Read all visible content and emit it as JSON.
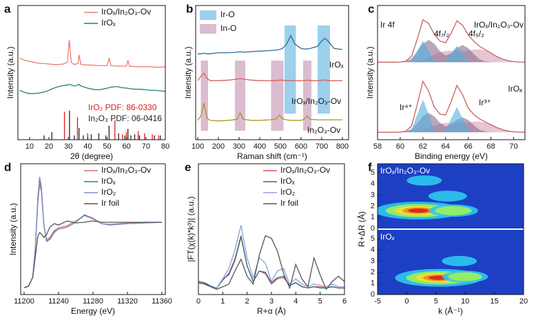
{
  "chart_data": [
    {
      "type": "line",
      "panel": "a",
      "xlabel": "2θ (degree)",
      "ylabel": "Intensity (a.u.)",
      "xlim": [
        4,
        80
      ],
      "xticks": [
        10,
        20,
        30,
        40,
        50,
        60,
        70,
        80
      ],
      "ylim": [
        0,
        12.5
      ],
      "legend": "upper right",
      "x": [
        5,
        7.5,
        10,
        12.5,
        15,
        17.5,
        20,
        22.5,
        25,
        27.5,
        29.5,
        30.5,
        31.5,
        33,
        35,
        35.5,
        36.5,
        40,
        42.5,
        45,
        47.5,
        50,
        51,
        52,
        55,
        57.5,
        60,
        60.7,
        61.5,
        65,
        67.5,
        70,
        72.5,
        75,
        77.5,
        80
      ],
      "series": [
        {
          "name": "IrOₓ/In₂O₃-Ov",
          "color": "#f07a70",
          "values": [
            7.6,
            7.4,
            7.3,
            7.2,
            7.1,
            7.1,
            7.05,
            7.0,
            7.0,
            7.05,
            7.2,
            9.3,
            7.2,
            7.0,
            7.1,
            7.9,
            7.0,
            6.95,
            6.95,
            6.9,
            6.9,
            6.9,
            7.6,
            6.9,
            6.85,
            6.85,
            6.85,
            7.4,
            6.85,
            6.8,
            6.8,
            6.8,
            6.8,
            6.75,
            6.75,
            6.8
          ]
        },
        {
          "name": "IrOₓ",
          "color": "#1e7f80",
          "values": [
            4.6,
            4.4,
            4.3,
            4.3,
            4.35,
            4.45,
            4.6,
            4.8,
            4.95,
            5.05,
            5.1,
            5.15,
            5.1,
            5.0,
            5.1,
            5.15,
            5.0,
            4.8,
            4.7,
            4.65,
            4.7,
            4.8,
            4.85,
            4.9,
            4.95,
            4.85,
            4.8,
            4.8,
            4.75,
            4.7,
            4.7,
            4.65,
            4.6,
            4.6,
            4.55,
            4.5
          ]
        }
      ],
      "references": [
        {
          "name": "IrO₂ PDF: 86-0330",
          "color": "#e01818",
          "x": [
            28,
            34.7,
            40,
            54,
            57.9,
            59.9,
            66,
            69.3,
            73.3,
            76.5
          ],
          "values": [
            2.6,
            2.1,
            0.6,
            1.8,
            0.5,
            0.7,
            0.8,
            0.6,
            0.5,
            0.4
          ]
        },
        {
          "name": "In₂O₃ PDF: 06-0416",
          "color": "#222222",
          "x": [
            17.5,
            21.5,
            30.6,
            33.1,
            35.5,
            37.7,
            41.8,
            45.7,
            49.3,
            51,
            55.9,
            59.1,
            60.7,
            62.2,
            64.2,
            66.7,
            74.4,
            77.4
          ],
          "values": [
            0.4,
            0.7,
            2.7,
            0.4,
            1.1,
            0.4,
            0.5,
            0.6,
            0.4,
            1.3,
            0.6,
            0.4,
            1.0,
            0.4,
            0.5,
            0.4,
            0.4,
            0.4
          ]
        }
      ]
    },
    {
      "type": "line",
      "panel": "b",
      "xlabel": "Raman shift (cm⁻¹)",
      "ylabel": "Intensity (a.u.)",
      "xlim": [
        90,
        830
      ],
      "xticks": [
        100,
        200,
        300,
        400,
        500,
        600,
        700,
        800
      ],
      "ylim": [
        0,
        12.5
      ],
      "legend": "upper left",
      "x": [
        100,
        115,
        130,
        145,
        160,
        200,
        250,
        290,
        305,
        320,
        360,
        400,
        450,
        480,
        495,
        510,
        530,
        550,
        570,
        600,
        615,
        630,
        645,
        680,
        700,
        715,
        730,
        760,
        800
      ],
      "series": [
        {
          "name": "IrOₓ",
          "color": "#2a6f9a",
          "values": [
            8.0,
            8.0,
            8.05,
            8.0,
            8.0,
            8.1,
            8.1,
            8.15,
            8.2,
            8.15,
            8.2,
            8.25,
            8.3,
            8.35,
            8.4,
            8.5,
            8.9,
            9.7,
            8.9,
            8.5,
            8.45,
            8.45,
            8.5,
            8.7,
            9.2,
            9.45,
            9.2,
            8.5,
            8.4
          ]
        },
        {
          "name": "IrOₓ/In₂O₃-Ov",
          "color": "#d9605a",
          "values": [
            5.5,
            5.9,
            6.2,
            5.7,
            5.5,
            5.5,
            5.55,
            5.65,
            5.7,
            5.65,
            5.55,
            5.5,
            5.5,
            5.5,
            5.55,
            5.55,
            5.5,
            5.5,
            5.5,
            5.5,
            5.5,
            5.55,
            5.5,
            5.5,
            5.55,
            5.55,
            5.5,
            5.5,
            5.5
          ]
        },
        {
          "name": "In₂O₃-Ov",
          "color": "#a8961e",
          "values": [
            1.8,
            2.2,
            3.4,
            2.0,
            1.8,
            1.75,
            1.8,
            1.9,
            2.5,
            1.9,
            1.8,
            1.8,
            1.85,
            1.95,
            2.3,
            1.95,
            1.85,
            1.8,
            1.8,
            1.8,
            1.9,
            2.2,
            1.9,
            1.85,
            1.85,
            1.85,
            1.85,
            1.85,
            1.85
          ]
        }
      ],
      "bands": [
        {
          "name": "Ir-O",
          "color": "#7cc0e4",
          "ranges": [
            [
              520,
              575
            ],
            [
              680,
              740
            ]
          ]
        },
        {
          "name": "In-O",
          "color": "#cfa6c0",
          "ranges": [
            [
              115,
              150
            ],
            [
              280,
              330
            ],
            [
              455,
              515
            ],
            [
              610,
              650
            ]
          ]
        }
      ]
    },
    {
      "type": "line",
      "panel": "c",
      "xlabel": "Binding energy (eV)",
      "ylabel": "Intensity (a.u.)",
      "xlim": [
        58,
        71
      ],
      "xticks": [
        58,
        60,
        62,
        64,
        66,
        68,
        70
      ],
      "ylim": [
        0,
        9
      ],
      "x": [
        58,
        58.5,
        59,
        59.5,
        60,
        60.5,
        61,
        61.5,
        62,
        62.5,
        63,
        63.5,
        64,
        64.5,
        65,
        65.5,
        66,
        66.5,
        67,
        67.5,
        68,
        68.5,
        69,
        69.5,
        70,
        70.5,
        71
      ],
      "series": [
        {
          "color": "#d6a0b4",
          "fill": true,
          "values": [
            5.2,
            5.2,
            5.2,
            5.2,
            5.2,
            5.21,
            5.22,
            5.28,
            5.38,
            5.54,
            5.72,
            5.87,
            5.96,
            5.96,
            5.93,
            5.92,
            5.98,
            6.05,
            6.06,
            5.98,
            5.8,
            5.58,
            5.42,
            5.3,
            5.24,
            5.21,
            5.2
          ]
        },
        {
          "color": "#8c6b8f",
          "fill": true,
          "values": [
            5.2,
            5.2,
            5.2,
            5.2,
            5.21,
            5.27,
            5.45,
            5.89,
            6.43,
            6.7,
            6.43,
            5.94,
            5.65,
            5.8,
            6.15,
            6.35,
            6.14,
            5.73,
            5.4,
            5.25,
            5.21,
            5.2,
            5.2,
            5.2,
            5.2,
            5.2,
            5.2
          ]
        },
        {
          "color": "#4fb0e0",
          "fill": true,
          "values": [
            5.2,
            5.2,
            5.2,
            5.2,
            5.2,
            5.2,
            5.32,
            5.97,
            6.63,
            5.97,
            5.32,
            5.21,
            5.29,
            5.8,
            6.3,
            5.8,
            5.29,
            5.21,
            5.2,
            5.2,
            5.2,
            5.2,
            5.2,
            5.2,
            5.2,
            5.2,
            5.2
          ]
        },
        {
          "color": "#c8605e",
          "values": [
            5.2,
            5.2,
            5.2,
            5.2,
            5.21,
            5.28,
            5.59,
            6.74,
            8.04,
            7.81,
            7.07,
            6.62,
            6.5,
            7.16,
            7.98,
            7.67,
            7.01,
            6.59,
            6.26,
            6.03,
            5.81,
            5.58,
            5.42,
            5.3,
            5.24,
            5.21,
            5.2
          ]
        },
        {
          "color": "#d6a0b4",
          "fill": true,
          "values": [
            0.5,
            0.5,
            0.5,
            0.5,
            0.5,
            0.51,
            0.52,
            0.57,
            0.65,
            0.78,
            0.93,
            1.06,
            1.13,
            1.13,
            1.11,
            1.1,
            1.15,
            1.21,
            1.22,
            1.15,
            1.0,
            0.82,
            0.68,
            0.58,
            0.53,
            0.51,
            0.5
          ]
        },
        {
          "color": "#8c6b8f",
          "fill": true,
          "values": [
            0.5,
            0.5,
            0.5,
            0.5,
            0.51,
            0.56,
            0.72,
            1.1,
            1.57,
            1.8,
            1.57,
            1.14,
            0.89,
            1.02,
            1.33,
            1.5,
            1.32,
            0.96,
            0.67,
            0.54,
            0.51,
            0.5,
            0.5,
            0.5,
            0.5,
            0.5,
            0.5
          ]
        },
        {
          "color": "#4fb0e0",
          "fill": true,
          "values": [
            0.5,
            0.5,
            0.5,
            0.5,
            0.5,
            0.5,
            0.69,
            1.69,
            2.7,
            1.69,
            0.69,
            0.51,
            0.64,
            1.42,
            2.2,
            1.42,
            0.64,
            0.51,
            0.5,
            0.5,
            0.5,
            0.5,
            0.5,
            0.5,
            0.5,
            0.5,
            0.5
          ]
        },
        {
          "color": "#c8605e",
          "values": [
            0.5,
            0.5,
            0.5,
            0.5,
            0.51,
            0.57,
            0.93,
            2.36,
            3.92,
            3.27,
            2.19,
            1.71,
            1.66,
            2.57,
            3.64,
            3.02,
            2.11,
            1.68,
            1.39,
            1.19,
            1.01,
            0.82,
            0.68,
            0.58,
            0.53,
            0.51,
            0.5
          ]
        }
      ],
      "annotations": [
        "Ir 4f",
        "IrOₓ/In₂O₃-Ov",
        "4f₇/₂",
        "4f₅/₂",
        "IrOₓ",
        "Ir⁴⁺",
        "Ir³⁺"
      ]
    },
    {
      "type": "line",
      "panel": "d",
      "xlabel": "Energy (eV)",
      "ylabel": "Intensity (a.u.)",
      "xlim": [
        11196,
        11364
      ],
      "xticks": [
        11200,
        11240,
        11280,
        11320,
        11360
      ],
      "ylim": [
        -0.05,
        1.85
      ],
      "legend": "upper right",
      "x": [
        11200,
        11205,
        11210,
        11213,
        11216,
        11218,
        11220,
        11223,
        11226,
        11230,
        11235,
        11240,
        11250,
        11260,
        11270,
        11280,
        11290,
        11300,
        11320,
        11340,
        11360
      ],
      "series": [
        {
          "name": "IrOₓ/In₂O₃-Ov",
          "color": "#e07070",
          "values": [
            0.05,
            0.07,
            0.2,
            0.6,
            1.3,
            1.55,
            1.45,
            0.95,
            0.75,
            0.78,
            0.88,
            0.92,
            0.95,
            1.02,
            1.1,
            1.05,
            0.98,
            0.97,
            0.99,
            1.0,
            1.0
          ]
        },
        {
          "name": "IrOₓ",
          "color": "#2a8080",
          "values": [
            0.05,
            0.07,
            0.2,
            0.62,
            1.35,
            1.62,
            1.5,
            0.95,
            0.73,
            0.76,
            0.86,
            0.9,
            0.93,
            1.0,
            1.1,
            1.06,
            0.98,
            0.96,
            0.98,
            0.99,
            1.0
          ]
        },
        {
          "name": "IrO₂",
          "color": "#7a8ed0",
          "values": [
            0.05,
            0.07,
            0.2,
            0.62,
            1.38,
            1.66,
            1.52,
            0.95,
            0.72,
            0.75,
            0.85,
            0.9,
            0.93,
            1.0,
            1.11,
            1.06,
            0.98,
            0.96,
            0.98,
            0.99,
            1.0
          ]
        },
        {
          "name": "Ir foil",
          "color": "#555555",
          "values": [
            0.05,
            0.07,
            0.2,
            0.5,
            0.8,
            0.85,
            0.83,
            0.78,
            0.82,
            0.93,
            0.98,
            0.96,
            1.02,
            0.99,
            1.0,
            1.02,
            1.0,
            1.0,
            1.0,
            1.0,
            1.0
          ]
        }
      ]
    },
    {
      "type": "line",
      "panel": "e",
      "xlabel": "R+α (Å)",
      "ylabel": "|FT(χ(k)*k³)| (a.u.)",
      "xlim": [
        0,
        6
      ],
      "xticks": [
        0,
        1,
        2,
        3,
        4,
        5,
        6
      ],
      "ylim": [
        0,
        10
      ],
      "legend": "upper right",
      "x": [
        0,
        0.25,
        0.5,
        0.75,
        1,
        1.25,
        1.5,
        1.75,
        2,
        2.25,
        2.5,
        2.75,
        3,
        3.25,
        3.5,
        3.75,
        4,
        4.25,
        4.5,
        4.75,
        5,
        5.25,
        5.5,
        5.75,
        6
      ],
      "series": [
        {
          "name": "IrOₓ/In₂O₃-Ov",
          "color": "#e05050",
          "values": [
            0.9,
            0.8,
            0.6,
            0.5,
            1.2,
            1.5,
            2.6,
            4.4,
            2.2,
            1.0,
            1.8,
            1.6,
            0.8,
            1.2,
            1.3,
            0.7,
            0.9,
            0.6,
            0.5,
            0.6,
            0.6,
            0.5,
            0.6,
            0.5,
            0.5
          ]
        },
        {
          "name": "IrOₓ",
          "color": "#2a6a80",
          "values": [
            0.9,
            0.8,
            0.6,
            0.5,
            1.1,
            1.6,
            2.7,
            4.5,
            2.2,
            1.0,
            1.8,
            1.7,
            0.9,
            1.3,
            1.4,
            0.7,
            0.9,
            0.6,
            0.5,
            0.6,
            0.5,
            0.5,
            0.6,
            0.5,
            0.5
          ]
        },
        {
          "name": "IrO₂",
          "color": "#8fa0d8",
          "values": [
            1.0,
            0.9,
            0.7,
            0.5,
            1.2,
            2.0,
            3.4,
            5.3,
            2.8,
            1.3,
            2.8,
            2.4,
            1.0,
            1.8,
            2.0,
            0.8,
            1.2,
            0.8,
            0.6,
            0.8,
            0.7,
            0.6,
            0.8,
            0.6,
            0.6
          ]
        },
        {
          "name": "Ir foil",
          "color": "#555555",
          "values": [
            1.0,
            0.9,
            0.6,
            0.4,
            0.6,
            0.8,
            1.8,
            2.7,
            1.4,
            0.8,
            3.0,
            4.5,
            4.3,
            3.3,
            1.6,
            0.5,
            2.3,
            1.2,
            0.6,
            2.8,
            1.5,
            0.4,
            1.0,
            1.4,
            1.0
          ]
        }
      ]
    },
    {
      "type": "wavelet",
      "panel": "f",
      "xlabel": "k (Å⁻¹)",
      "ylabel": "R+ΔR (Å)",
      "xlim": [
        -5,
        20
      ],
      "xticks": [
        -5,
        0,
        5,
        10,
        15,
        20
      ],
      "ylim": [
        0,
        5.8
      ],
      "yticks": [
        0,
        1,
        2,
        3,
        4,
        5
      ],
      "subplots": [
        {
          "label": "IrOₓ/In₂O₃-Ov",
          "x": [
            2,
            8,
            7,
            3
          ],
          "values": [
            1.6,
            1.6,
            2.9,
            4.3
          ],
          "intensity": [
            1.0,
            0.45,
            0.3,
            0.25
          ]
        },
        {
          "label": "IrOₓ",
          "x": [
            5.5,
            10,
            9
          ],
          "values": [
            1.5,
            1.6,
            3.0
          ],
          "intensity": [
            1.0,
            0.4,
            0.25
          ]
        }
      ]
    }
  ]
}
